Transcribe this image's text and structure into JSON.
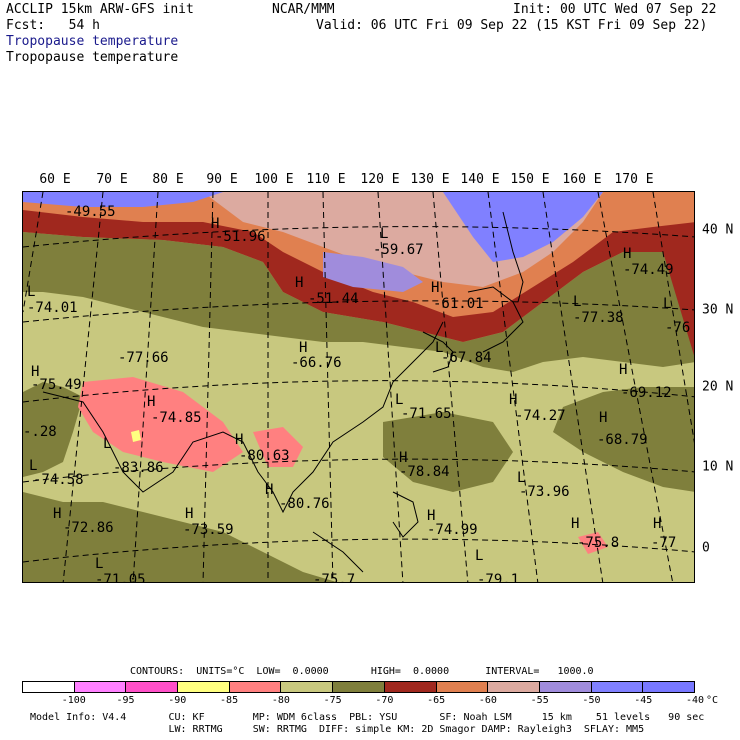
{
  "header": {
    "model_line": "ACCLIP 15km ARW-GFS init",
    "fcst_line": "Fcst:   54 h",
    "center": "NCAR/MMM",
    "init": "Init: 00 UTC Wed 07 Sep 22",
    "valid": "Valid: 06 UTC Fri 09 Sep 22 (15 KST Fri 09 Sep 22)",
    "field_title_1": "Tropopause temperature",
    "field_title_2": "Tropopause temperature"
  },
  "lon_labels": [
    "60 E",
    "70 E",
    "80 E",
    "90 E",
    "100 E",
    "110 E",
    "120 E",
    "130 E",
    "140 E",
    "150 E",
    "160 E",
    "170 E"
  ],
  "lat_labels": [
    "40 N",
    "30 N",
    "20 N",
    "10 N",
    "0"
  ],
  "map_labels": {
    "values": [
      "-49.55",
      "-51.96",
      "-59.67",
      "-74.49",
      "-74.01",
      "-51.44",
      "-61.01",
      "-77.38",
      "-76",
      "-77.66",
      "-66.76",
      "-67.84",
      "-75.49",
      "-74.85",
      "-71.65",
      "-74.27",
      "-69.12",
      "-.28",
      "-68.79",
      "-83.86",
      "-80.63",
      "-78.84",
      "-74.58",
      "-80.76",
      "-73.96",
      "-72.86",
      "-73.59",
      "-74.99",
      "-75.8",
      "-77",
      "-71.05",
      "-75.7",
      "-79.1"
    ],
    "high_low": [
      "H",
      "L",
      "H",
      "L",
      "H",
      "H",
      "L",
      "L",
      "H",
      "L",
      "H",
      "H",
      "L",
      "H",
      "H",
      "H",
      "H",
      "L",
      "H",
      "L",
      "H",
      "L",
      "H",
      "H",
      "H",
      "H",
      "L",
      "H",
      "L"
    ]
  },
  "legend": {
    "contours_info": "CONTOURS:  UNITS=°C  LOW=  0.0000       HIGH=  0.0000      INTERVAL=   1000.0",
    "bins": [
      {
        "label": "-100",
        "color": "#ffffff"
      },
      {
        "label": "-95",
        "color": "#ff80ff"
      },
      {
        "label": "-90",
        "color": "#ff50c8"
      },
      {
        "label": "-85",
        "color": "#ffff80"
      },
      {
        "label": "-80",
        "color": "#ff8080"
      },
      {
        "label": "-75",
        "color": "#c8c87f"
      },
      {
        "label": "-70",
        "color": "#7f7f3c"
      },
      {
        "label": "-65",
        "color": "#a0281e"
      },
      {
        "label": "-60",
        "color": "#e08050"
      },
      {
        "label": "-55",
        "color": "#dcaaa0"
      },
      {
        "label": "-50",
        "color": "#a08cdc"
      },
      {
        "label": "-45",
        "color": "#8080ff"
      },
      {
        "label": "-40",
        "color": "#7878ff"
      }
    ],
    "unit": "°C"
  },
  "footer": {
    "line1": "Model Info: V4.4       CU: KF        MP: WDM 6class  PBL: YSU       SF: Noah LSM     15 km    51 levels   90 sec",
    "line2": "                       LW: RRTMG     SW: RRTMG  DIFF: simple KM: 2D Smagor DAMP: Rayleigh3  SFLAY: MM5"
  }
}
